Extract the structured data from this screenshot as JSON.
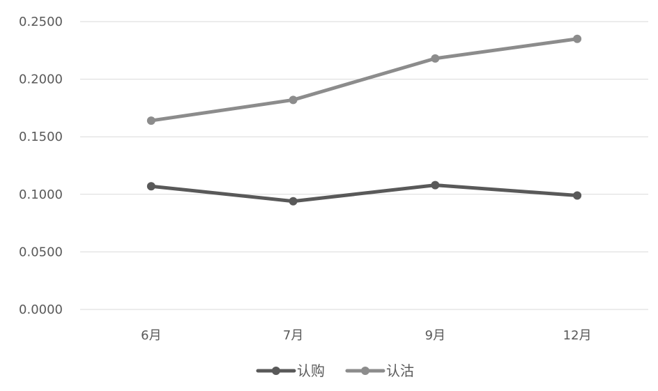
{
  "chart_data": {
    "type": "line",
    "title": "",
    "xlabel": "",
    "ylabel": "",
    "categories": [
      "6月",
      "7月",
      "9月",
      "12月"
    ],
    "ylim": [
      0,
      0.25
    ],
    "yticks": [
      "0.0000",
      "0.0500",
      "0.1000",
      "0.1500",
      "0.2000",
      "0.2500"
    ],
    "grid": true,
    "legend_position": "bottom",
    "series": [
      {
        "name": "认购",
        "values": [
          0.107,
          0.094,
          0.108,
          0.099
        ],
        "color": "#595959"
      },
      {
        "name": "认沽",
        "values": [
          0.164,
          0.182,
          0.218,
          0.235
        ],
        "color": "#8c8c8c"
      }
    ]
  }
}
